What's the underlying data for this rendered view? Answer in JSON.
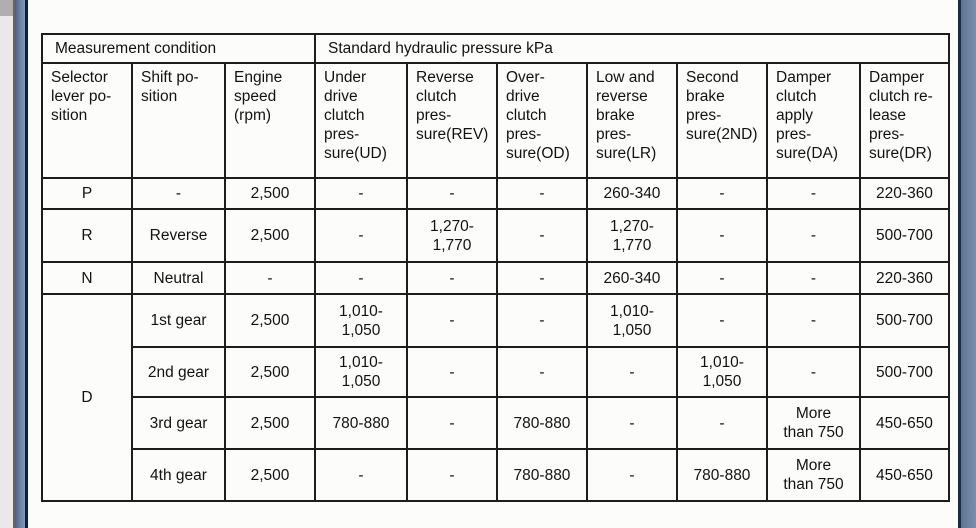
{
  "colors": {
    "edge_bar_blue": "#6d84a6",
    "edge_bar_border": "#0f1f3d",
    "page_background": "#fcfcfb",
    "table_border": "#1d1d1d"
  },
  "table": {
    "group_headers": [
      {
        "label": "Measurement condition"
      },
      {
        "label": "Standard hydraulic pressure kPa"
      }
    ],
    "columns": [
      "Selector\nlever po-\nsition",
      "Shift po-\nsition",
      "Engine\nspeed\n(rpm)",
      "Under\ndrive\nclutch\npres-\nsure(UD)",
      "Reverse\nclutch\npres-\nsure(REV)",
      "Over-\ndrive\nclutch\npres-\nsure(OD)",
      "Low and\nreverse\nbrake\npres-\nsure(LR)",
      "Second\nbrake\npres-\nsure(2ND)",
      "Damper\nclutch\napply\npres-\nsure(DA)",
      "Damper\nclutch re-\nlease\npres-\nsure(DR)"
    ],
    "rows": [
      {
        "cells": [
          "P",
          "-",
          "2,500",
          "-",
          "-",
          "-",
          "260-340",
          "-",
          "-",
          "220-360"
        ]
      },
      {
        "cells": [
          "R",
          "Reverse",
          "2,500",
          "-",
          "1,270-\n1,770",
          "-",
          "1,270-\n1,770",
          "-",
          "-",
          "500-700"
        ]
      },
      {
        "cells": [
          "N",
          "Neutral",
          "-",
          "-",
          "-",
          "-",
          "260-340",
          "-",
          "-",
          "220-360"
        ]
      },
      {
        "selector_rowspan": 4,
        "cells": [
          "D",
          "1st gear",
          "2,500",
          "1,010-\n1,050",
          "-",
          "-",
          "1,010-\n1,050",
          "-",
          "-",
          "500-700"
        ]
      },
      {
        "cells": [
          "2nd gear",
          "2,500",
          "1,010-\n1,050",
          "-",
          "-",
          "-",
          "1,010-\n1,050",
          "-",
          "500-700"
        ]
      },
      {
        "cells": [
          "3rd gear",
          "2,500",
          "780-880",
          "-",
          "780-880",
          "-",
          "-",
          "More\nthan 750",
          "450-650"
        ]
      },
      {
        "cells": [
          "4th gear",
          "2,500",
          "-",
          "-",
          "780-880",
          "-",
          "780-880",
          "More\nthan 750",
          "450-650"
        ]
      }
    ]
  }
}
